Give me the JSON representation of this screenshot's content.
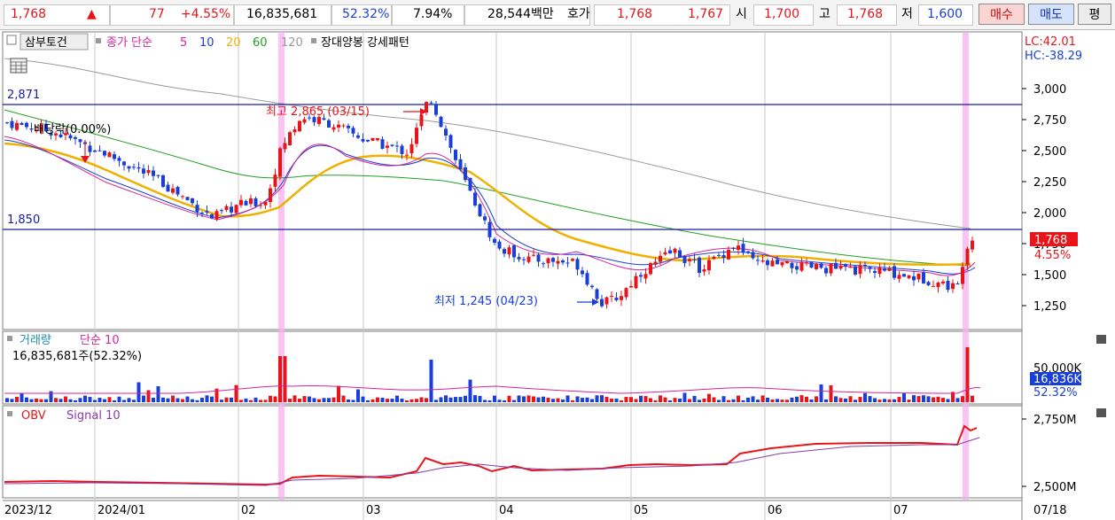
{
  "header": {
    "price": "1,768",
    "up_arrow": "▲",
    "change": "77",
    "change_pct": "+4.55%",
    "volume": "16,835,681",
    "volume_ratio": "52.32%",
    "turnover": "7.94%",
    "trade_amount": "28,544백만",
    "quote_label": "호가",
    "ask": "1,768",
    "bid": "1,767",
    "open_label": "시",
    "open": "1,700",
    "high_label": "고",
    "high": "1,768",
    "low_label": "저",
    "low": "1,600",
    "buy_button": "매수",
    "sell_button": "매도",
    "extra_button": "평"
  },
  "colors": {
    "up": "#e8141a",
    "down": "#1a3fd8",
    "ma5": "#d4249c",
    "ma10": "#1a3fd8",
    "ma20": "#f0b000",
    "ma60": "#21a021",
    "ma120": "#999999",
    "highlight": "#f7b0f0"
  },
  "price_panel": {
    "title_button": "삼부토건",
    "ma_label": "종가 단순",
    "ma_periods": [
      "5",
      "10",
      "20",
      "60",
      "120"
    ],
    "pattern_label": "장대양봉 강세패턴",
    "lc_label": "LC:42.01",
    "hc_label": "HC:-38.29",
    "hline_high_label": "2,871",
    "hline_low_label": "1,850",
    "dividend_label": "배당락(0.00%)",
    "max_annotation": "최고 2,865 (03/15)",
    "min_annotation": "최저 1,245 (04/23)",
    "y_ticks": [
      "3,000",
      "2,750",
      "2,500",
      "2,250",
      "2,000",
      "1,750",
      "1,500",
      "1,250"
    ],
    "current_price_tag": "1,768",
    "current_change_tag": "4.55%"
  },
  "volume_panel": {
    "title": "거래량",
    "ma_label": "단순 10",
    "value_label": "16,835,681주(52.32%)",
    "y_tick": "50,000K",
    "value_tag": "16,836K",
    "ratio_tag": "52.32%"
  },
  "obv_panel": {
    "obv_label": "OBV",
    "signal_label": "Signal 10",
    "y_ticks": [
      "2,750M",
      "2,500M"
    ]
  },
  "x_axis": {
    "labels": [
      "2023/12",
      "2024/01",
      "02",
      "03",
      "04",
      "05",
      "06",
      "07"
    ],
    "last_date": "07/18"
  },
  "chart_data": {
    "type": "candlestick",
    "symbol": "삼부토건",
    "y_range": [
      1150,
      3150
    ],
    "reference_lines": [
      2871,
      1850
    ],
    "max_point": {
      "value": 2865,
      "date": "03/15"
    },
    "min_point": {
      "value": 1245,
      "date": "04/23"
    },
    "last": {
      "close": 1768,
      "change": 77,
      "change_pct": 4.55,
      "open": 1700,
      "high": 1768,
      "low": 1600
    },
    "volume_last": 16835681
  }
}
